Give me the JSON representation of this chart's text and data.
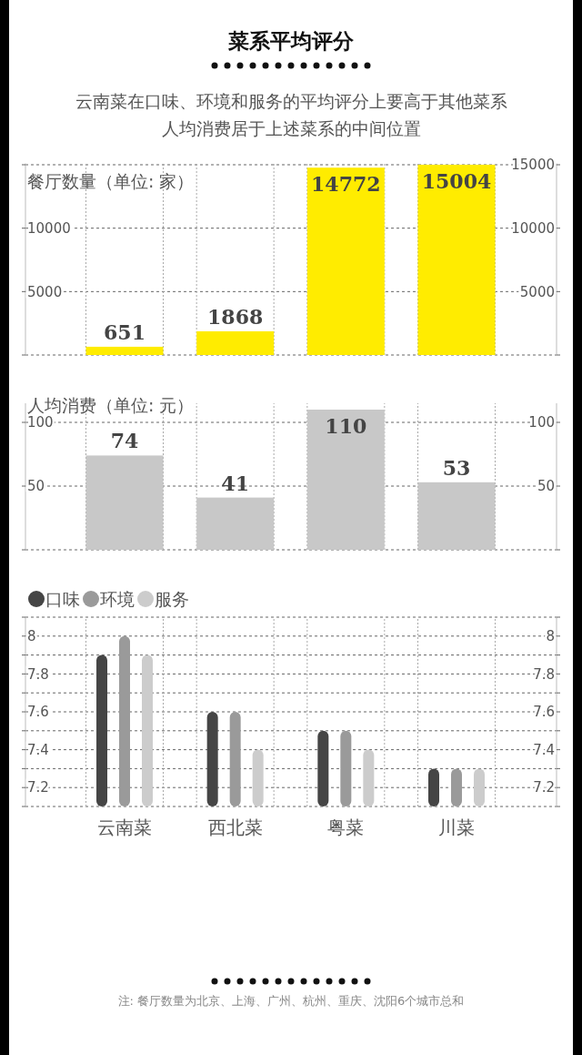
{
  "chart_data": [
    {
      "type": "bar",
      "title": "菜系平均评分",
      "subtitle": "云南菜在口味、环境和服务的平均评分上要高于其他菜系人均消费居于上述菜系的中间位置",
      "ylabel": "餐厅数量（单位: 家）",
      "categories": [
        null,
        null,
        null,
        null
      ],
      "values": [
        651,
        1868,
        14772,
        15004
      ],
      "color": "#ffec00",
      "ylim": [
        0,
        15100
      ],
      "yticks": [
        {
          "value": 0,
          "label": null
        },
        5000,
        10000,
        {
          "value": 15000,
          "label": null
        }
      ],
      "y2lim": [
        0,
        15100
      ],
      "y2ticks": [
        {
          "value": 0,
          "label": null
        },
        5000,
        10000,
        15000
      ],
      "grid": "y",
      "data_labels": true
    },
    {
      "type": "bar",
      "ylabel": "人均消费（单位: 元）",
      "categories": [
        null,
        null,
        null,
        null
      ],
      "values": [
        74,
        41,
        110,
        53
      ],
      "color": "#c8c8c8",
      "ylim": [
        0,
        115
      ],
      "yticks": [
        {
          "value": 0,
          "label": null
        },
        50,
        100
      ],
      "y2lim": [
        0,
        115
      ],
      "y2ticks": [
        {
          "value": 0,
          "label": null
        },
        50,
        100
      ],
      "grid": "y",
      "data_labels": true
    },
    {
      "type": "bar",
      "categories": [
        "云南菜",
        "西北菜",
        "粤菜",
        "川菜"
      ],
      "series": [
        {
          "name": "口味",
          "color": "#454545",
          "values": [
            7.9,
            7.6,
            7.5,
            7.3
          ]
        },
        {
          "name": "环境",
          "color": "#9a9a9a",
          "values": [
            8.0,
            7.6,
            7.5,
            7.3
          ]
        },
        {
          "name": "服务",
          "color": "#cccccc",
          "values": [
            7.9,
            7.4,
            7.4,
            7.3
          ]
        }
      ],
      "ylim": [
        7.1,
        8.1
      ],
      "yticks": [
        {
          "value": 7.1,
          "label": null
        },
        "7.2",
        {
          "value": 7.3,
          "label": null
        },
        7.4,
        {
          "value": 7.5,
          "label": null
        },
        7.6,
        {
          "value": 7.7,
          "label": null
        },
        7.8,
        {
          "value": 7.9,
          "label": null
        },
        8,
        {
          "value": 8.1,
          "label": null
        }
      ],
      "y2lim": [
        7.1,
        8.1
      ],
      "y2ticks": [
        {
          "value": 7.1,
          "label": null
        },
        7.2,
        {
          "value": 7.3,
          "label": null
        },
        7.4,
        {
          "value": 7.5,
          "label": null
        },
        7.6,
        {
          "value": 7.7,
          "label": null
        },
        7.8,
        {
          "value": 7.9,
          "label": null
        },
        8,
        {
          "value": 8.1,
          "label": null
        }
      ],
      "grid": "y",
      "legend": "top left",
      "annotations": [
        "注: 餐厅数量为北京、上海、广州、杭州、重庆、沈阳6个城市总和"
      ]
    }
  ]
}
